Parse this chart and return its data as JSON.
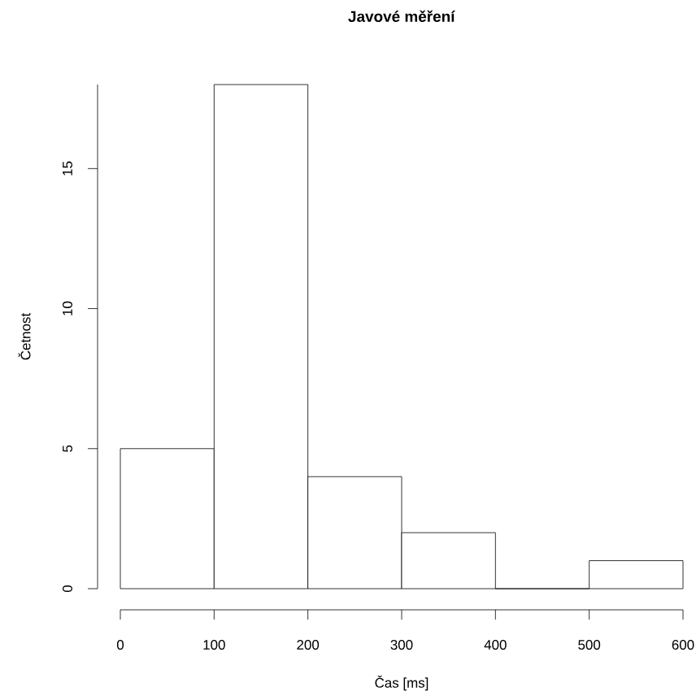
{
  "chart_data": {
    "type": "histogram",
    "title": "**Javové měření**",
    "xlabel": "Čas [ms]",
    "ylabel": "Četnost",
    "bins": [
      0,
      100,
      200,
      300,
      400,
      500,
      600
    ],
    "values": [
      5,
      18,
      4,
      2,
      0,
      1
    ],
    "color": "#ffffff",
    "xlim": [
      0,
      600
    ],
    "ylim": [
      0,
      18
    ],
    "xticks": [
      0,
      100,
      200,
      300,
      400,
      500,
      600
    ],
    "yticks": [
      0,
      5,
      10,
      15
    ],
    "grid": false
  }
}
